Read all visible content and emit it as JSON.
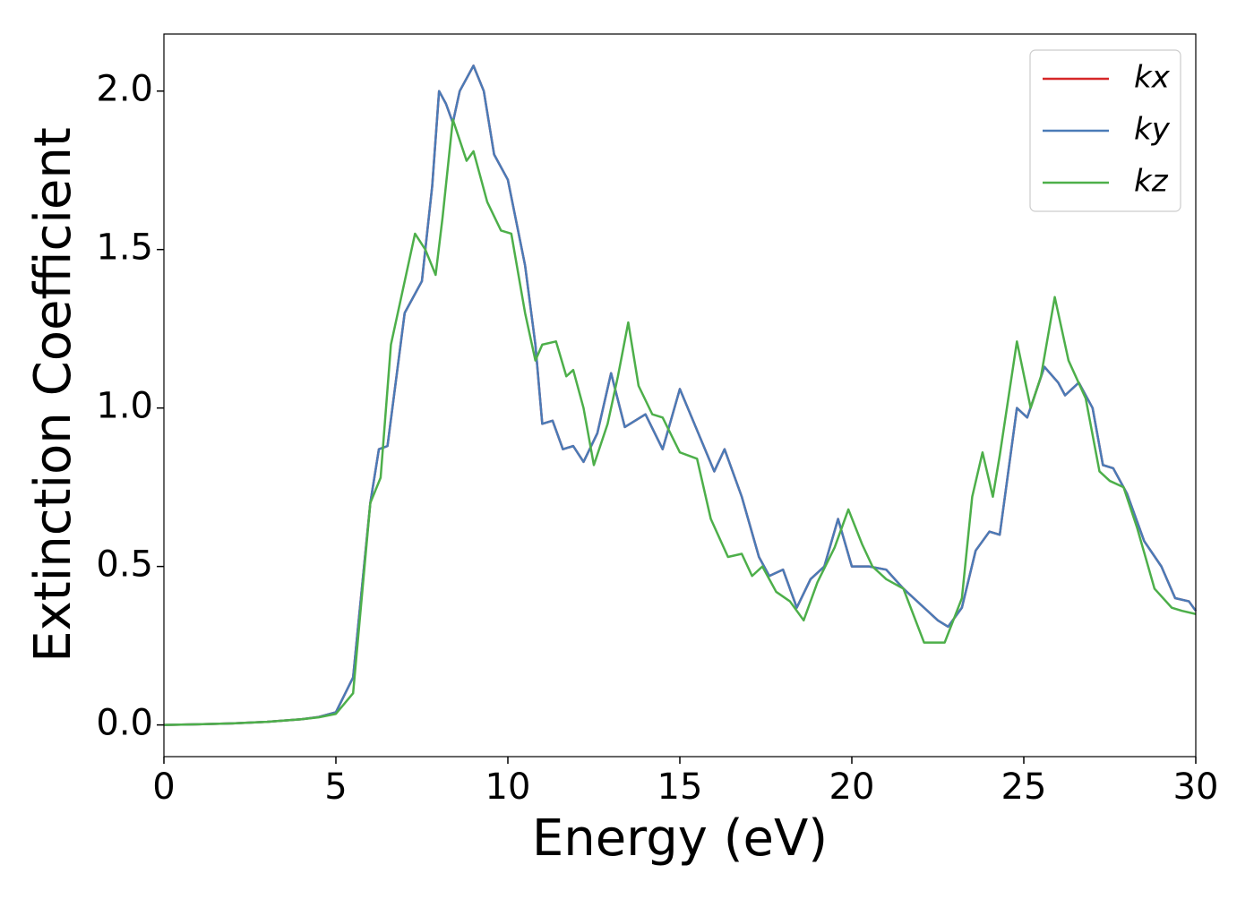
{
  "chart_data": {
    "type": "line",
    "xlabel": "Energy (eV)",
    "ylabel": "Extinction Coefficient",
    "xlim": [
      0,
      30
    ],
    "xticks": [
      0,
      5,
      10,
      15,
      20,
      25,
      30
    ],
    "ylim": [
      -0.1,
      2.18
    ],
    "yticks": [
      {
        "value": 0,
        "label": "0.0"
      },
      0.5,
      {
        "value": 1,
        "label": "1.0"
      },
      1.5,
      {
        "value": 2,
        "label": "2.0"
      }
    ],
    "legend": "upper right",
    "series": [
      {
        "name": "kx",
        "color": "#d62728",
        "x": [
          0,
          1,
          2,
          3,
          4,
          4.5,
          5,
          5.5,
          6,
          6.25,
          6.5,
          7,
          7.5,
          7.8,
          8,
          8.2,
          8.4,
          8.6,
          9,
          9.3,
          9.6,
          10,
          10.5,
          10.8,
          11,
          11.3,
          11.6,
          11.9,
          12.2,
          12.6,
          13,
          13.4,
          13.7,
          14,
          14.5,
          15,
          15.5,
          16,
          16.3,
          16.8,
          17.3,
          17.6,
          18,
          18.4,
          18.8,
          19.2,
          19.6,
          20,
          20.5,
          21,
          21.5,
          22,
          22.5,
          22.8,
          23.2,
          23.6,
          24,
          24.3,
          24.8,
          25.1,
          25.6,
          26,
          26.2,
          26.6,
          27,
          27.3,
          27.6,
          28,
          28.5,
          29,
          29.4,
          29.8,
          30
        ],
        "values": [
          0,
          0.002,
          0.005,
          0.01,
          0.018,
          0.025,
          0.04,
          0.15,
          0.7,
          0.87,
          0.88,
          1.3,
          1.4,
          1.7,
          2.0,
          1.96,
          1.9,
          2.0,
          2.08,
          2.0,
          1.8,
          1.72,
          1.45,
          1.2,
          0.95,
          0.96,
          0.87,
          0.88,
          0.83,
          0.92,
          1.11,
          0.94,
          0.96,
          0.98,
          0.87,
          1.06,
          0.93,
          0.8,
          0.87,
          0.72,
          0.53,
          0.47,
          0.49,
          0.37,
          0.46,
          0.5,
          0.65,
          0.5,
          0.5,
          0.49,
          0.43,
          0.38,
          0.33,
          0.31,
          0.37,
          0.55,
          0.61,
          0.6,
          1.0,
          0.97,
          1.13,
          1.08,
          1.04,
          1.08,
          1.0,
          0.82,
          0.81,
          0.73,
          0.58,
          0.5,
          0.4,
          0.39,
          0.36
        ]
      },
      {
        "name": "ky",
        "color": "#4a7bb7",
        "x": [
          0,
          1,
          2,
          3,
          4,
          4.5,
          5,
          5.5,
          6,
          6.25,
          6.5,
          7,
          7.5,
          7.8,
          8,
          8.2,
          8.4,
          8.6,
          9,
          9.3,
          9.6,
          10,
          10.5,
          10.8,
          11,
          11.3,
          11.6,
          11.9,
          12.2,
          12.6,
          13,
          13.4,
          13.7,
          14,
          14.5,
          15,
          15.5,
          16,
          16.3,
          16.8,
          17.3,
          17.6,
          18,
          18.4,
          18.8,
          19.2,
          19.6,
          20,
          20.5,
          21,
          21.5,
          22,
          22.5,
          22.8,
          23.2,
          23.6,
          24,
          24.3,
          24.8,
          25.1,
          25.6,
          26,
          26.2,
          26.6,
          27,
          27.3,
          27.6,
          28,
          28.5,
          29,
          29.4,
          29.8,
          30
        ],
        "values": [
          0,
          0.002,
          0.005,
          0.01,
          0.018,
          0.025,
          0.04,
          0.15,
          0.7,
          0.87,
          0.88,
          1.3,
          1.4,
          1.7,
          2.0,
          1.96,
          1.9,
          2.0,
          2.08,
          2.0,
          1.8,
          1.72,
          1.45,
          1.2,
          0.95,
          0.96,
          0.87,
          0.88,
          0.83,
          0.92,
          1.11,
          0.94,
          0.96,
          0.98,
          0.87,
          1.06,
          0.93,
          0.8,
          0.87,
          0.72,
          0.53,
          0.47,
          0.49,
          0.37,
          0.46,
          0.5,
          0.65,
          0.5,
          0.5,
          0.49,
          0.43,
          0.38,
          0.33,
          0.31,
          0.37,
          0.55,
          0.61,
          0.6,
          1.0,
          0.97,
          1.13,
          1.08,
          1.04,
          1.08,
          1.0,
          0.82,
          0.81,
          0.73,
          0.58,
          0.5,
          0.4,
          0.39,
          0.36
        ]
      },
      {
        "name": "kz",
        "color": "#4daf4a",
        "x": [
          0,
          1,
          2,
          3,
          4,
          4.5,
          5,
          5.5,
          6,
          6.3,
          6.6,
          7,
          7.3,
          7.6,
          7.9,
          8.1,
          8.4,
          8.8,
          9,
          9.4,
          9.8,
          10.1,
          10.5,
          10.8,
          11,
          11.4,
          11.7,
          11.9,
          12.2,
          12.5,
          12.9,
          13.2,
          13.5,
          13.8,
          14.2,
          14.5,
          15,
          15.5,
          15.9,
          16.4,
          16.8,
          17.1,
          17.4,
          17.8,
          18.2,
          18.6,
          19,
          19.5,
          19.9,
          20.3,
          20.6,
          21,
          21.5,
          22.1,
          22.7,
          23.2,
          23.5,
          23.8,
          24.1,
          24.3,
          24.8,
          25.2,
          25.5,
          25.9,
          26.3,
          26.8,
          27.2,
          27.5,
          27.9,
          28.3,
          28.8,
          29.3,
          29.6,
          30
        ],
        "values": [
          0,
          0.002,
          0.005,
          0.01,
          0.018,
          0.024,
          0.035,
          0.1,
          0.7,
          0.78,
          1.2,
          1.4,
          1.55,
          1.5,
          1.42,
          1.6,
          1.91,
          1.78,
          1.81,
          1.65,
          1.56,
          1.55,
          1.3,
          1.15,
          1.2,
          1.21,
          1.1,
          1.12,
          1.0,
          0.82,
          0.95,
          1.1,
          1.27,
          1.07,
          0.98,
          0.97,
          0.86,
          0.84,
          0.65,
          0.53,
          0.54,
          0.47,
          0.5,
          0.42,
          0.39,
          0.33,
          0.45,
          0.56,
          0.68,
          0.57,
          0.5,
          0.46,
          0.43,
          0.26,
          0.26,
          0.4,
          0.72,
          0.86,
          0.72,
          0.85,
          1.21,
          1.0,
          1.1,
          1.35,
          1.15,
          1.03,
          0.8,
          0.77,
          0.75,
          0.62,
          0.43,
          0.37,
          0.36,
          0.35
        ]
      }
    ]
  }
}
